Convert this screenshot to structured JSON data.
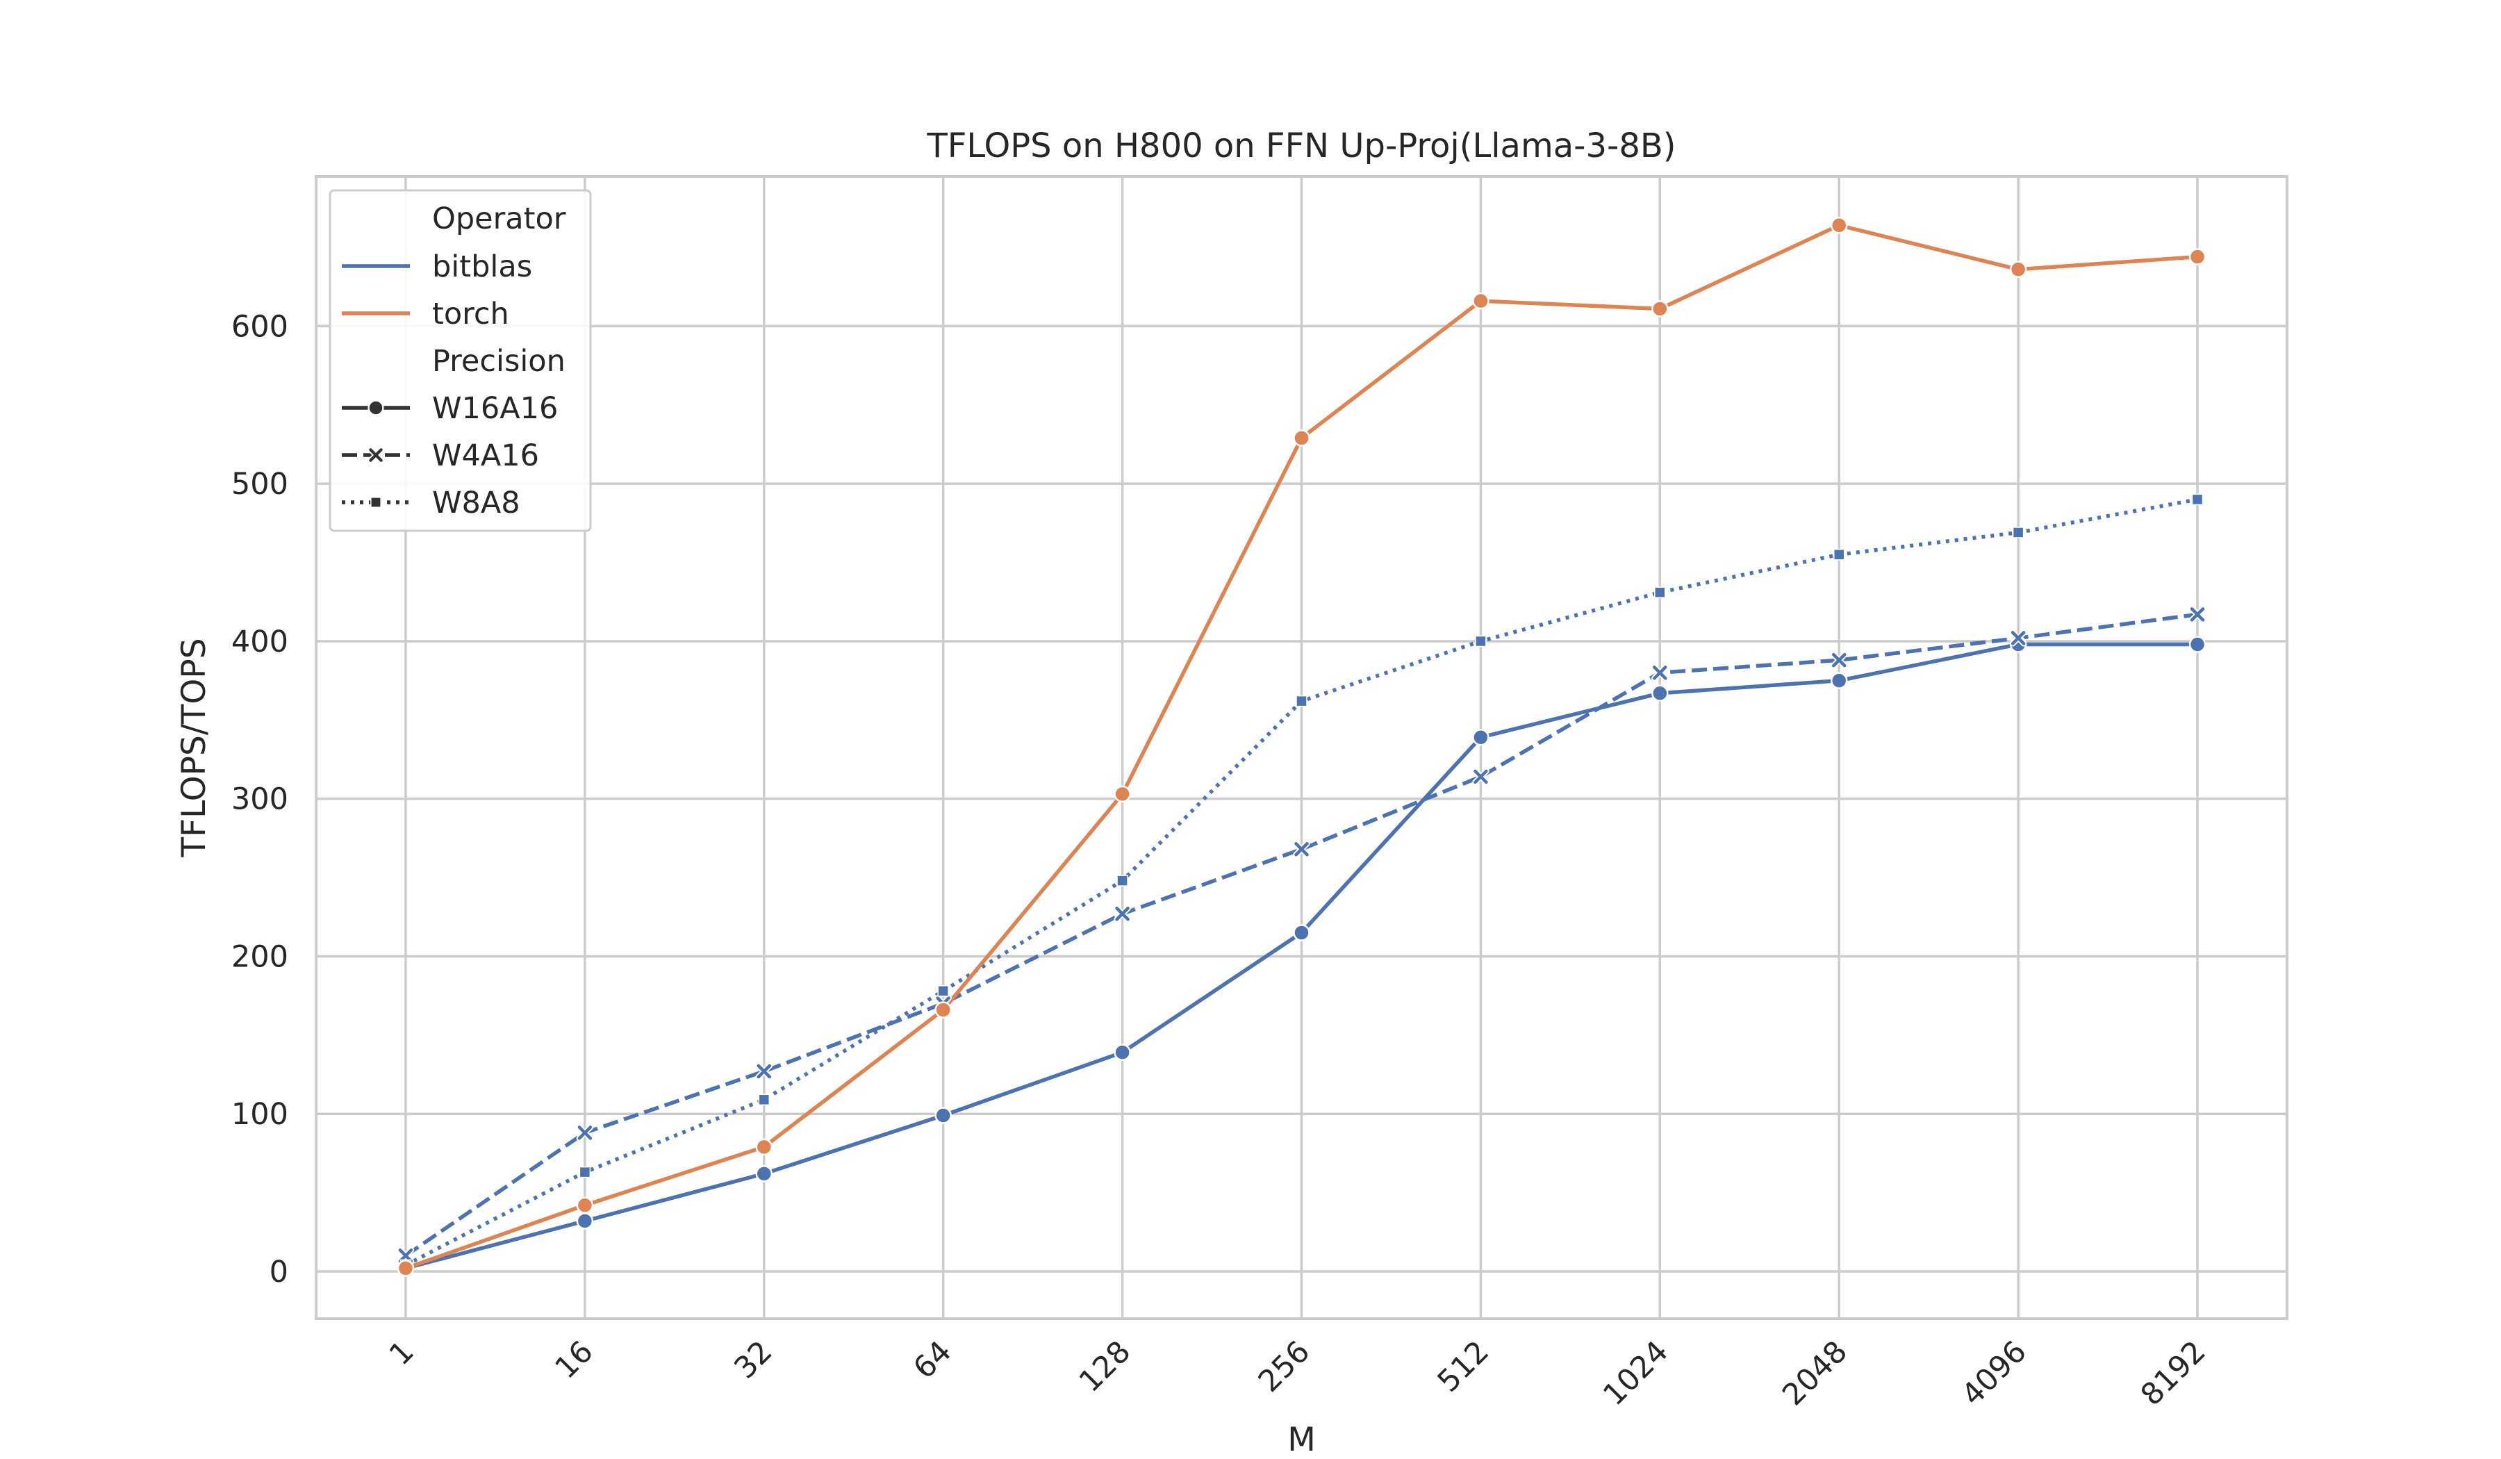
{
  "chart_data": {
    "type": "line",
    "title": "TFLOPS on H800 on FFN Up-Proj(Llama-3-8B)",
    "xlabel": "M",
    "ylabel": "TFLOPS/TOPS",
    "categories": [
      "1",
      "16",
      "32",
      "64",
      "128",
      "256",
      "512",
      "1024",
      "2048",
      "4096",
      "8192"
    ],
    "ylim": [
      -30,
      695
    ],
    "yticks": [
      0,
      100,
      200,
      300,
      400,
      500,
      600
    ],
    "grid": true,
    "legend_position": "top-left",
    "legend": {
      "operator_title": "Operator",
      "precision_title": "Precision",
      "operators": [
        {
          "label": "bitblas",
          "color": "#4c72b0"
        },
        {
          "label": "torch",
          "color": "#dd8452"
        }
      ],
      "precisions": [
        {
          "label": "W16A16",
          "dash": "solid",
          "marker": "circle"
        },
        {
          "label": "W4A16",
          "dash": "dashed",
          "marker": "x"
        },
        {
          "label": "W8A8",
          "dash": "dotted",
          "marker": "square"
        }
      ]
    },
    "series": [
      {
        "operator": "bitblas",
        "precision": "W16A16",
        "values": [
          2,
          32,
          62,
          99,
          139,
          215,
          339,
          367,
          375,
          398,
          398
        ]
      },
      {
        "operator": "bitblas",
        "precision": "W4A16",
        "values": [
          10,
          88,
          127,
          170,
          227,
          268,
          314,
          380,
          388,
          402,
          417
        ]
      },
      {
        "operator": "bitblas",
        "precision": "W8A8",
        "values": [
          4,
          63,
          109,
          178,
          248,
          362,
          400,
          431,
          455,
          469,
          490
        ]
      },
      {
        "operator": "torch",
        "precision": "W16A16",
        "values": [
          2,
          42,
          79,
          166,
          303,
          529,
          616,
          611,
          664,
          636,
          644
        ]
      }
    ]
  }
}
